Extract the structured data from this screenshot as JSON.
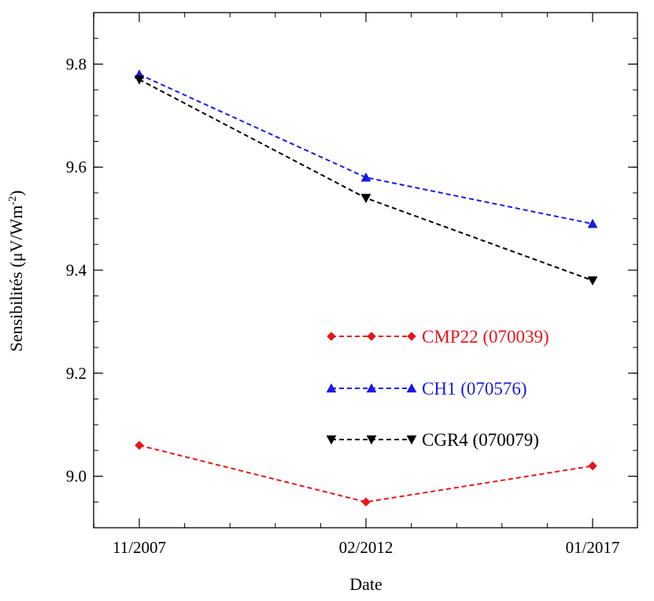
{
  "chart_data": {
    "type": "line",
    "xlabel": "Date",
    "ylabel_main": "Sensibilités (μV/Wm",
    "ylabel_sup": "-2",
    "ylabel_close": ")",
    "categories": [
      "11/2007",
      "02/2012",
      "01/2017"
    ],
    "ylim": [
      8.9,
      9.9
    ],
    "yticks": [
      9.0,
      9.2,
      9.4,
      9.6,
      9.8
    ],
    "ytick_labels": [
      "9.0",
      "9.2",
      "9.4",
      "9.6",
      "9.8"
    ],
    "grid": false,
    "legend_position": "center-right",
    "series": [
      {
        "name": "CMP22 (070039)",
        "values": [
          9.06,
          8.95,
          9.02
        ],
        "color": "#e8151b",
        "marker": "diamond",
        "line_style": "dashed"
      },
      {
        "name": "CH1 (070576)",
        "values": [
          9.78,
          9.58,
          9.49
        ],
        "color": "#1a1ae6",
        "marker": "triangle-up",
        "line_style": "dashed"
      },
      {
        "name": "CGR4 (070079)",
        "values": [
          9.77,
          9.54,
          9.38
        ],
        "color": "#000000",
        "marker": "triangle-down",
        "line_style": "dashed"
      }
    ]
  }
}
